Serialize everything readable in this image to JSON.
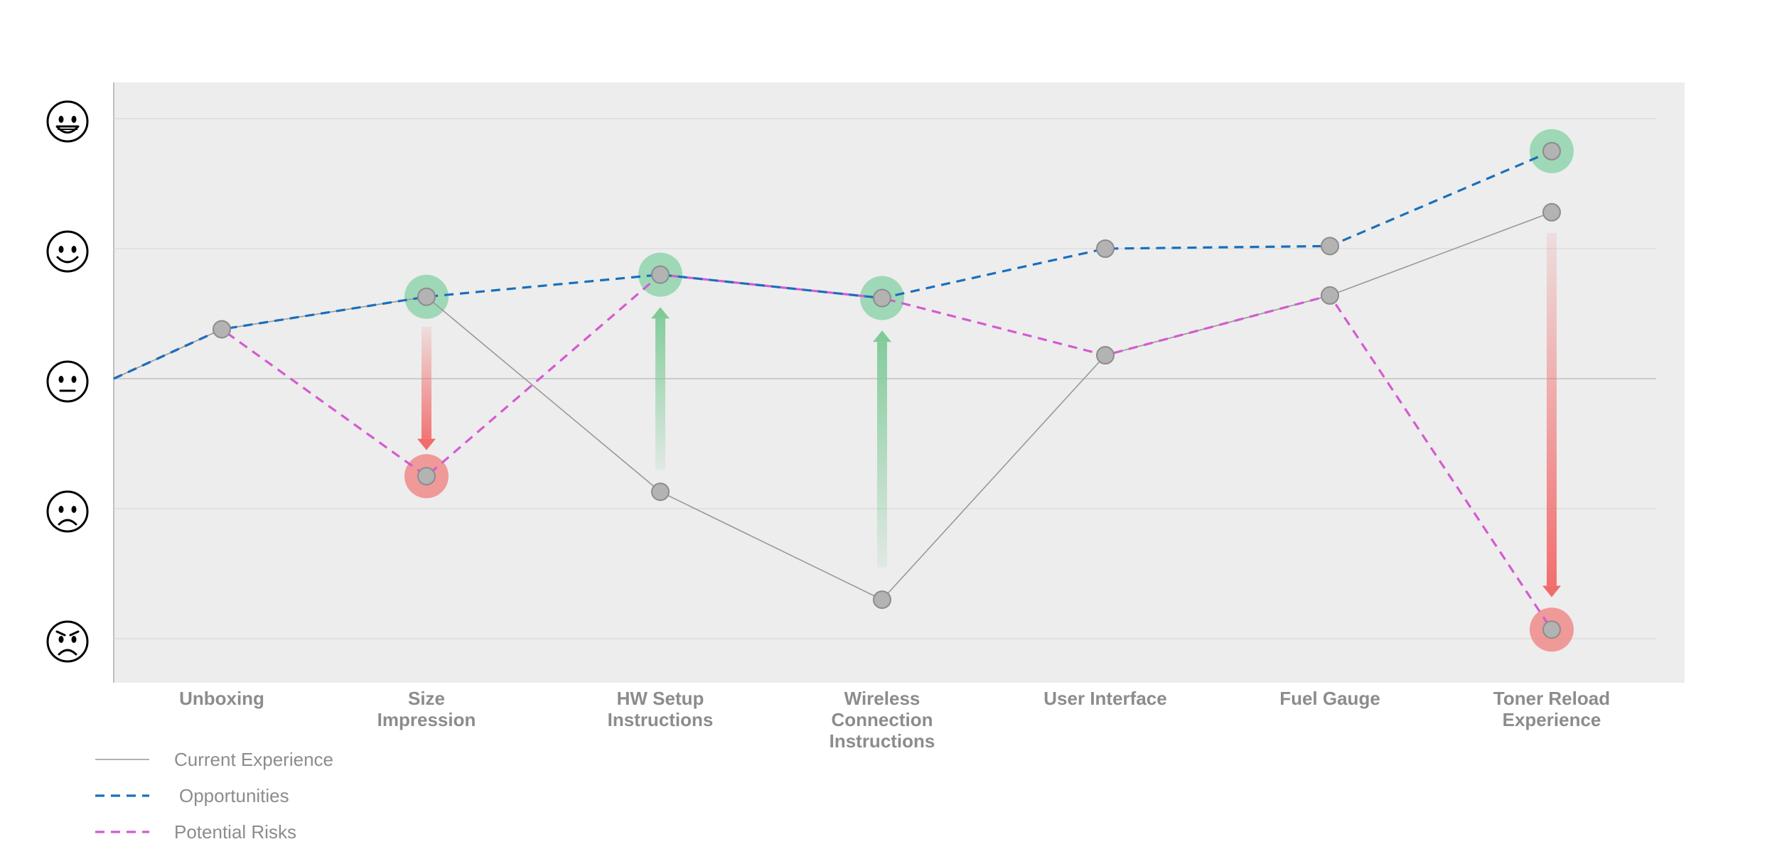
{
  "chart_data": {
    "type": "line",
    "categories": [
      "Unboxing",
      "Size Impression",
      "HW Setup Instructions",
      "Wireless Connection Instructions",
      "User Interface",
      "Fuel Gauge",
      "Toner Reload Experience"
    ],
    "category_lines": [
      [
        "Unboxing"
      ],
      [
        "Size",
        "Impression"
      ],
      [
        "HW Setup",
        "Instructions"
      ],
      [
        "Wireless",
        "Connection",
        "Instructions"
      ],
      [
        "User Interface"
      ],
      [
        "Fuel Gauge"
      ],
      [
        "Toner Reload",
        "Experience"
      ]
    ],
    "y_levels": [
      "very-happy",
      "happy",
      "neutral",
      "sad",
      "angry"
    ],
    "y_level_icons": [
      "grinning-face-icon",
      "smiling-face-icon",
      "neutral-face-icon",
      "frowning-face-icon",
      "angry-face-icon"
    ],
    "ylim": [
      -2.2,
      2.3
    ],
    "start_value": 0,
    "series": [
      {
        "name": "Current Experience",
        "key": "current",
        "style": "solid",
        "color": "#999999",
        "values": [
          0.38,
          0.63,
          -0.87,
          -1.7,
          0.18,
          0.64,
          1.28
        ]
      },
      {
        "name": "Opportunities",
        "key": "opportunities",
        "style": "dashed",
        "color": "#1a6fba",
        "values": [
          0.38,
          0.63,
          0.8,
          0.62,
          1.0,
          1.02,
          1.75
        ]
      },
      {
        "name": "Potential Risks",
        "key": "risks",
        "style": "dashed",
        "color": "#d45bd1",
        "values": [
          0.38,
          -0.75,
          0.8,
          0.62,
          0.18,
          0.64,
          -1.93
        ]
      }
    ],
    "highlights": [
      {
        "category_index": 1,
        "value": 0.63,
        "kind": "opportunity",
        "color": "#8fd3ab"
      },
      {
        "category_index": 1,
        "value": -0.75,
        "kind": "risk",
        "color": "#f08a8a"
      },
      {
        "category_index": 2,
        "value": 0.8,
        "kind": "opportunity",
        "color": "#8fd3ab"
      },
      {
        "category_index": 3,
        "value": 0.62,
        "kind": "opportunity",
        "color": "#8fd3ab"
      },
      {
        "category_index": 6,
        "value": 1.75,
        "kind": "opportunity",
        "color": "#8fd3ab"
      },
      {
        "category_index": 6,
        "value": -1.93,
        "kind": "risk",
        "color": "#f08a8a"
      }
    ],
    "arrows": [
      {
        "category_index": 1,
        "from": 0.4,
        "to": -0.55,
        "kind": "decline",
        "color": "#f26b6b"
      },
      {
        "category_index": 2,
        "from": -0.7,
        "to": 0.55,
        "kind": "improve",
        "color": "#7fcb98"
      },
      {
        "category_index": 3,
        "from": -1.45,
        "to": 0.37,
        "kind": "improve",
        "color": "#7fcb98"
      },
      {
        "category_index": 6,
        "from": 1.12,
        "to": -1.68,
        "kind": "decline",
        "color": "#f26b6b"
      }
    ],
    "grid": true,
    "legend_position": "bottom-left",
    "colors": {
      "plot_background": "#ededed",
      "gridline": "#dadada",
      "baseline": "#c0c0c0",
      "marker_fill": "#b3b3b3",
      "marker_stroke": "#8c8c8c",
      "text": "#8c8c8c"
    }
  }
}
